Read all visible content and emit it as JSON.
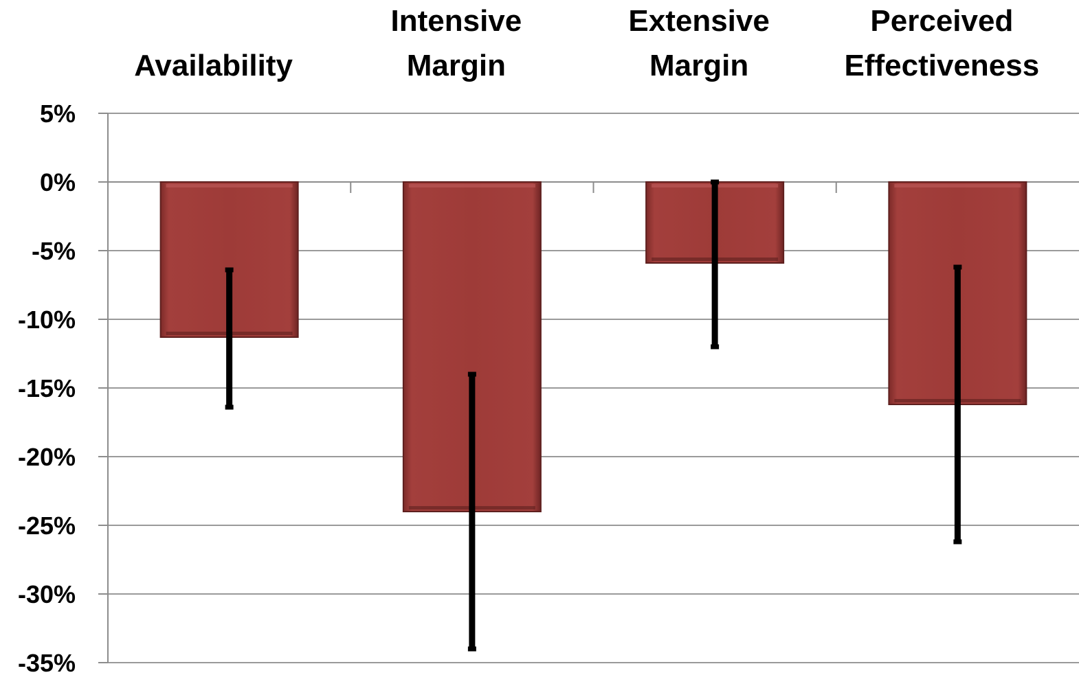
{
  "chart_data": {
    "type": "bar",
    "categories": [
      [
        "Availability"
      ],
      [
        "Intensive",
        "Margin"
      ],
      [
        "Extensive",
        "Margin"
      ],
      [
        "Perceived",
        "Effectiveness"
      ]
    ],
    "values": [
      -11.3,
      -24.0,
      -5.9,
      -16.2
    ],
    "error_bars": [
      {
        "low": -16.4,
        "high": -6.4
      },
      {
        "low": -34.0,
        "high": -14.0
      },
      {
        "low": -12.0,
        "high": 0.0
      },
      {
        "low": -26.2,
        "high": -6.2
      }
    ],
    "ylim": [
      -35,
      5
    ],
    "yticks": [
      5,
      0,
      -5,
      -10,
      -15,
      -20,
      -25,
      -30,
      -35
    ],
    "ytick_format": "percent",
    "title": "",
    "xlabel": "",
    "ylabel": "",
    "category_labels_position": "top",
    "grid": true,
    "legend": "none",
    "colors": {
      "bar_fill": "#9e3b38",
      "bar_edge": "#5e1f1e",
      "bar_highlight": "#b65452",
      "error_bar": "#000000",
      "grid": "#9a9a9a",
      "axis": "#8c8c8c"
    }
  }
}
